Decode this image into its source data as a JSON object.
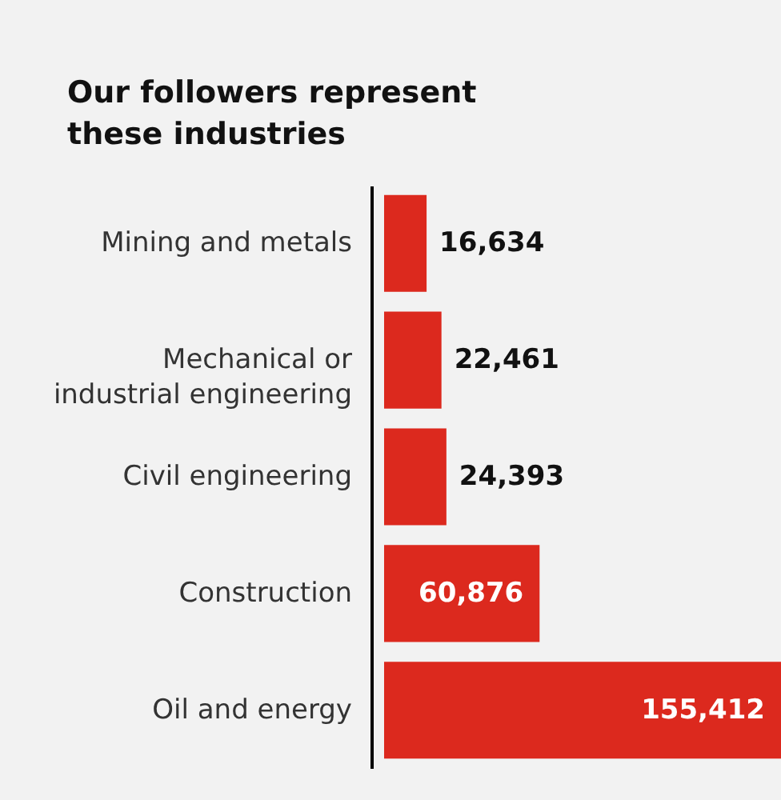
{
  "chart_data": {
    "type": "bar",
    "orientation": "horizontal",
    "title": "Our followers represent these industries",
    "categories": [
      "Mining and metals",
      "Mechanical or industrial engineering",
      "Civil engineering",
      "Construction",
      "Oil and energy"
    ],
    "values": [
      16634,
      22461,
      24393,
      60876,
      155412
    ],
    "value_labels": [
      "16,634",
      "22,461",
      "24,393",
      "60,876",
      "155,412"
    ],
    "color": "#dc291e"
  }
}
